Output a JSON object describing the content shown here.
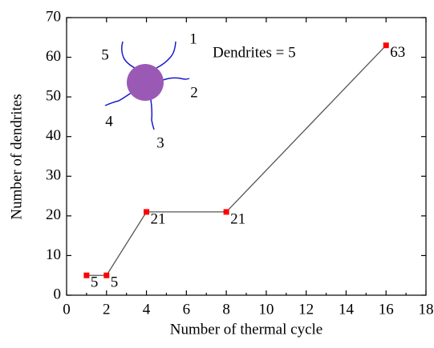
{
  "chart_data": {
    "type": "line",
    "x": [
      1,
      2,
      4,
      8,
      16
    ],
    "series": [
      {
        "color": "#ff0000",
        "line_color": "#555555",
        "values": [
          5,
          5,
          21,
          21,
          63
        ]
      }
    ],
    "xlabel": "Number of thermal cycle",
    "ylabel": "Number of dendrites",
    "xlim": [
      0,
      18
    ],
    "xticks": [
      0,
      2,
      4,
      6,
      8,
      10,
      12,
      14,
      16,
      18
    ],
    "ylim": [
      0,
      70
    ],
    "yticks": [
      0,
      10,
      20,
      30,
      40,
      50,
      60,
      70
    ],
    "grid": false,
    "annotation": "Dendrites = 5",
    "inset_labels": [
      "1",
      "2",
      "3",
      "4",
      "5"
    ]
  }
}
